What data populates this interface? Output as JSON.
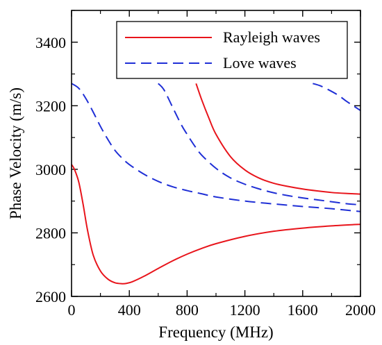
{
  "chart_data": {
    "type": "line",
    "title": "",
    "xlabel": "Frequency (MHz)",
    "ylabel": "Phase Velocity (m/s)",
    "xlim": [
      0,
      2000
    ],
    "ylim": [
      2600,
      3500
    ],
    "x_ticks": [
      0,
      400,
      800,
      1200,
      1600,
      2000
    ],
    "x_tick_labels": [
      "0",
      "400",
      "800",
      "1200",
      "1600",
      "2000"
    ],
    "y_ticks": [
      2600,
      2800,
      3000,
      3200,
      3400
    ],
    "y_tick_labels": [
      "2600",
      "2800",
      "3000",
      "3200",
      "3400"
    ],
    "grid": false,
    "legend": {
      "position": "top-right",
      "entries": [
        {
          "label": "Rayleigh waves",
          "color": "#e8141b",
          "style": "solid"
        },
        {
          "label": "Love waves",
          "color": "#1f2fd6",
          "style": "dashed"
        }
      ]
    },
    "series": [
      {
        "group": "Rayleigh waves",
        "color": "#e8141b",
        "style": "solid",
        "x": [
          0,
          20,
          50,
          80,
          110,
          150,
          200,
          250,
          300,
          350,
          380,
          420,
          500,
          600,
          700,
          800,
          900,
          1000,
          1200,
          1400,
          1600,
          1800,
          2000
        ],
        "y": [
          3015,
          3000,
          2960,
          2890,
          2810,
          2730,
          2680,
          2655,
          2643,
          2640,
          2641,
          2646,
          2663,
          2688,
          2712,
          2733,
          2751,
          2766,
          2789,
          2805,
          2815,
          2822,
          2827
        ]
      },
      {
        "group": "Rayleigh waves",
        "color": "#e8141b",
        "style": "solid",
        "x": [
          862,
          900,
          950,
          1000,
          1100,
          1200,
          1300,
          1400,
          1500,
          1600,
          1700,
          1800,
          1900,
          2000
        ],
        "y": [
          3270,
          3220,
          3162,
          3110,
          3040,
          2998,
          2972,
          2956,
          2946,
          2938,
          2932,
          2927,
          2924,
          2922
        ]
      },
      {
        "group": "Love waves",
        "color": "#1f2fd6",
        "style": "dashed",
        "x": [
          0,
          50,
          100,
          150,
          200,
          250,
          300,
          350,
          400,
          500,
          600,
          700,
          800,
          900,
          1000,
          1200,
          1400,
          1600,
          1800,
          2000
        ],
        "y": [
          3270,
          3255,
          3222,
          3180,
          3135,
          3095,
          3060,
          3035,
          3015,
          2985,
          2962,
          2945,
          2933,
          2923,
          2913,
          2900,
          2891,
          2883,
          2876,
          2867
        ]
      },
      {
        "group": "Love waves",
        "color": "#1f2fd6",
        "style": "dashed",
        "x": [
          600,
          640,
          700,
          760,
          800,
          850,
          900,
          1000,
          1100,
          1200,
          1300,
          1400,
          1500,
          1600,
          1700,
          1800,
          1900,
          2000
        ],
        "y": [
          3270,
          3250,
          3195,
          3140,
          3110,
          3075,
          3045,
          3003,
          2973,
          2953,
          2938,
          2926,
          2917,
          2910,
          2904,
          2898,
          2892,
          2888
        ]
      },
      {
        "group": "Love waves",
        "color": "#1f2fd6",
        "style": "dashed",
        "x": [
          1670,
          1720,
          1780,
          1850,
          1900,
          1950,
          2000
        ],
        "y": [
          3270,
          3263,
          3250,
          3232,
          3215,
          3200,
          3185
        ]
      }
    ]
  }
}
